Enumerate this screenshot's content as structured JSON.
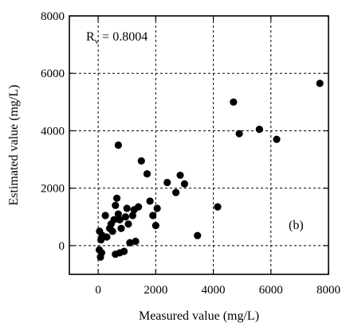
{
  "chart_data": {
    "type": "scatter",
    "xlabel": "Measured value (mg/L)",
    "ylabel": "Estimated value (mg/L)",
    "xlim": [
      -1000,
      8000
    ],
    "ylim": [
      -1000,
      8000
    ],
    "x_ticks": [
      0,
      2000,
      4000,
      6000,
      8000
    ],
    "y_ticks": [
      0,
      2000,
      4000,
      6000,
      8000
    ],
    "x_tick_labels": [
      "0",
      "2000",
      "4000",
      "6000",
      "8000"
    ],
    "y_tick_labels": [
      "0",
      "2000",
      "4000",
      "6000",
      "8000"
    ],
    "grid": true,
    "annotation_rv": {
      "main": "R",
      "sub": "v",
      "rest": " = 0.8004"
    },
    "panel_label": "(b)",
    "series": [
      {
        "points": [
          [
            50,
            500
          ],
          [
            100,
            200
          ],
          [
            150,
            350
          ],
          [
            40,
            -150
          ],
          [
            80,
            -400
          ],
          [
            120,
            -250
          ],
          [
            250,
            1050
          ],
          [
            300,
            300
          ],
          [
            400,
            600
          ],
          [
            450,
            750
          ],
          [
            500,
            500
          ],
          [
            550,
            900
          ],
          [
            600,
            1400
          ],
          [
            650,
            1650
          ],
          [
            700,
            3500
          ],
          [
            700,
            1100
          ],
          [
            750,
            900
          ],
          [
            800,
            600
          ],
          [
            600,
            -300
          ],
          [
            750,
            -250
          ],
          [
            900,
            -200
          ],
          [
            950,
            1000
          ],
          [
            1000,
            1300
          ],
          [
            1050,
            750
          ],
          [
            1100,
            100
          ],
          [
            1200,
            1050
          ],
          [
            1250,
            1250
          ],
          [
            1300,
            150
          ],
          [
            1400,
            1350
          ],
          [
            1500,
            2950
          ],
          [
            1700,
            2500
          ],
          [
            1800,
            1550
          ],
          [
            1900,
            1050
          ],
          [
            2000,
            700
          ],
          [
            2050,
            1300
          ],
          [
            2400,
            2200
          ],
          [
            2700,
            1850
          ],
          [
            2850,
            2450
          ],
          [
            3000,
            2150
          ],
          [
            3450,
            350
          ],
          [
            4150,
            1350
          ],
          [
            4700,
            5000
          ],
          [
            4900,
            3900
          ],
          [
            5600,
            4050
          ],
          [
            6200,
            3700
          ],
          [
            7700,
            5650
          ]
        ]
      }
    ]
  }
}
